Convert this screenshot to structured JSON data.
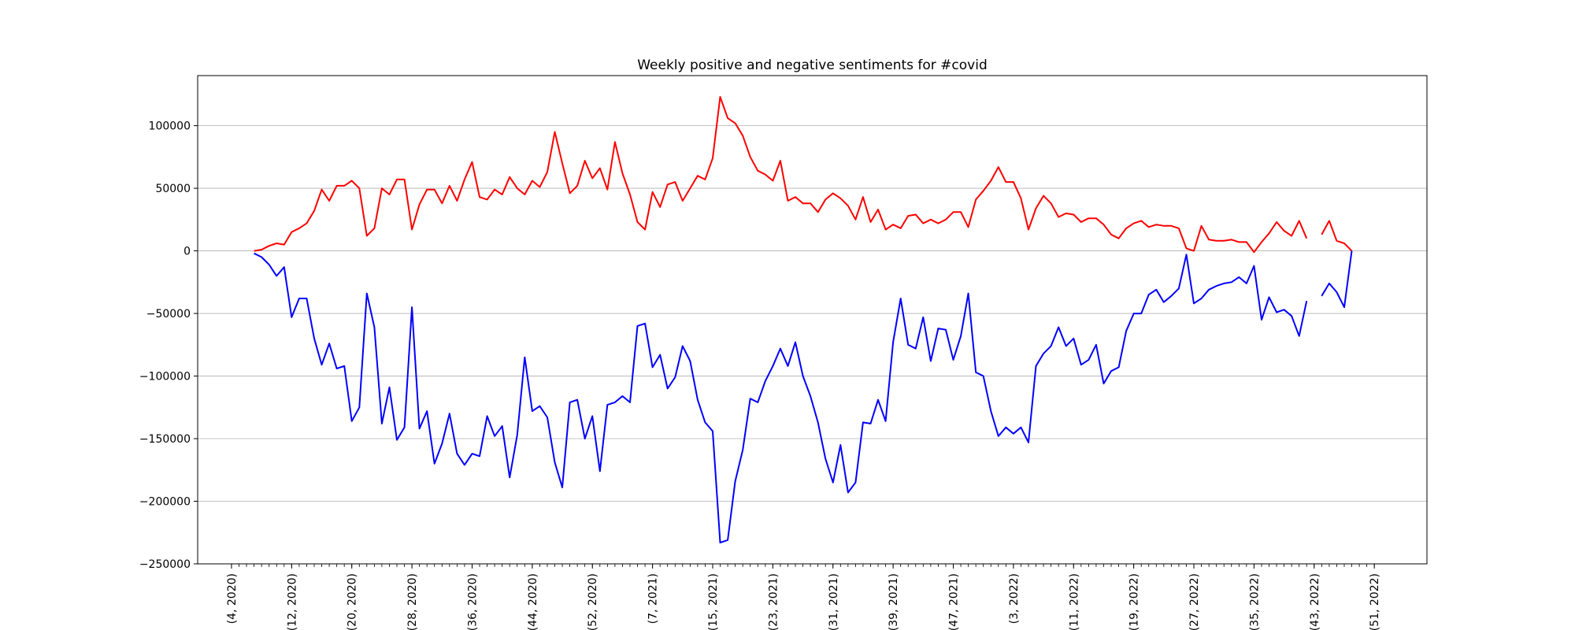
{
  "chart_data": {
    "type": "line",
    "title": "Weekly positive and negative sentiments for #covid",
    "xlabel": "",
    "ylabel": "",
    "ylim": [
      -250000,
      140000
    ],
    "yticks": [
      -250000,
      -200000,
      -150000,
      -100000,
      -50000,
      0,
      50000,
      100000
    ],
    "ytick_labels": [
      "−250000",
      "−200000",
      "−150000",
      "−100000",
      "−50000",
      "0",
      "50000",
      "100000"
    ],
    "grid": "horizontal",
    "xticks": [
      {
        "index": -3,
        "label": "(4, 2020)"
      },
      {
        "index": 5,
        "label": "(12, 2020)"
      },
      {
        "index": 13,
        "label": "(20, 2020)"
      },
      {
        "index": 21,
        "label": "(28, 2020)"
      },
      {
        "index": 29,
        "label": "(36, 2020)"
      },
      {
        "index": 37,
        "label": "(44, 2020)"
      },
      {
        "index": 45,
        "label": "(52, 2020)"
      },
      {
        "index": 53,
        "label": "(7, 2021)"
      },
      {
        "index": 61,
        "label": "(15, 2021)"
      },
      {
        "index": 69,
        "label": "(23, 2021)"
      },
      {
        "index": 77,
        "label": "(31, 2021)"
      },
      {
        "index": 85,
        "label": "(39, 2021)"
      },
      {
        "index": 93,
        "label": "(47, 2021)"
      },
      {
        "index": 101,
        "label": "(3, 2022)"
      },
      {
        "index": 109,
        "label": "(11, 2022)"
      },
      {
        "index": 117,
        "label": "(19, 2022)"
      },
      {
        "index": 125,
        "label": "(27, 2022)"
      },
      {
        "index": 133,
        "label": "(35, 2022)"
      },
      {
        "index": 141,
        "label": "(43, 2022)"
      },
      {
        "index": 149,
        "label": "(51, 2022)"
      }
    ],
    "x_range": [
      -7.5,
      156
    ],
    "series": [
      {
        "name": "",
        "color": "#ff0000",
        "x_start": 0,
        "values": [
          0,
          1000,
          4000,
          6000,
          5000,
          15000,
          18000,
          22000,
          32000,
          49000,
          40000,
          52000,
          52000,
          56000,
          50000,
          12000,
          18000,
          50000,
          45000,
          57000,
          57000,
          17000,
          37000,
          49000,
          49000,
          38000,
          52000,
          40000,
          57000,
          71000,
          43000,
          41000,
          49000,
          45000,
          59000,
          50000,
          45000,
          56000,
          51000,
          63000,
          95000,
          70000,
          46000,
          52000,
          72000,
          58000,
          66000,
          49000,
          87000,
          62000,
          45000,
          23000,
          17000,
          47000,
          35000,
          53000,
          55000,
          40000,
          50000,
          60000,
          57000,
          74000,
          123000,
          106000,
          102000,
          92000,
          75000,
          64000,
          61000,
          56000,
          72000,
          40000,
          43000,
          38000,
          38000,
          31000,
          41000,
          46000,
          42000,
          36000,
          25000,
          43000,
          23000,
          33000,
          17000,
          21000,
          18000,
          28000,
          29000,
          22000,
          25000,
          22000,
          25000,
          31000,
          31000,
          19000,
          41000,
          48000,
          56000,
          67000,
          55000,
          55000,
          42000,
          17000,
          34000,
          44000,
          38000,
          27000,
          30000,
          29000,
          23000,
          26000,
          26000,
          21000,
          13000,
          10000,
          18000,
          22000,
          24000,
          19000,
          21000,
          20000,
          20000,
          18000,
          2000,
          0,
          20000,
          9000,
          8000,
          8000,
          9000,
          7000,
          7000,
          -1000,
          7000,
          14000,
          23000,
          16000,
          12000,
          24000,
          10000,
          null,
          13000,
          24000,
          8000,
          6000,
          0
        ]
      },
      {
        "name": "",
        "color": "#0000ff",
        "x_start": 0,
        "values": [
          -2000,
          -5000,
          -11000,
          -20000,
          -13000,
          -53000,
          -38000,
          -38000,
          -70000,
          -91000,
          -74000,
          -94000,
          -92000,
          -136000,
          -125000,
          -34000,
          -61000,
          -138000,
          -109000,
          -151000,
          -141000,
          -45000,
          -142000,
          -128000,
          -170000,
          -154000,
          -130000,
          -162000,
          -171000,
          -162000,
          -164000,
          -132000,
          -148000,
          -140000,
          -181000,
          -147000,
          -85000,
          -128000,
          -124000,
          -133000,
          -169000,
          -189000,
          -121000,
          -119000,
          -150000,
          -132000,
          -176000,
          -123000,
          -121000,
          -116000,
          -121000,
          -60000,
          -58000,
          -93000,
          -83000,
          -110000,
          -101000,
          -76000,
          -88000,
          -119000,
          -137000,
          -144000,
          -233000,
          -231000,
          -184000,
          -159000,
          -118000,
          -121000,
          -104000,
          -92000,
          -78000,
          -92000,
          -73000,
          -100000,
          -116000,
          -137000,
          -166000,
          -185000,
          -155000,
          -193000,
          -185000,
          -137000,
          -138000,
          -119000,
          -136000,
          -73000,
          -38000,
          -75000,
          -78000,
          -53000,
          -88000,
          -62000,
          -63000,
          -87000,
          -68000,
          -34000,
          -97000,
          -100000,
          -128000,
          -148000,
          -141000,
          -146000,
          -141000,
          -153000,
          -92000,
          -82000,
          -76000,
          -61000,
          -76000,
          -70000,
          -91000,
          -87000,
          -75000,
          -106000,
          -96000,
          -93000,
          -64000,
          -50000,
          -50000,
          -35000,
          -31000,
          -41000,
          -36000,
          -30000,
          -3000,
          -42000,
          -38000,
          -31000,
          -28000,
          -26000,
          -25000,
          -21000,
          -26000,
          -12000,
          -55000,
          -37000,
          -49000,
          -47000,
          -52000,
          -68000,
          -40000,
          null,
          -36000,
          -26000,
          -33000,
          -45000,
          0
        ]
      }
    ]
  }
}
